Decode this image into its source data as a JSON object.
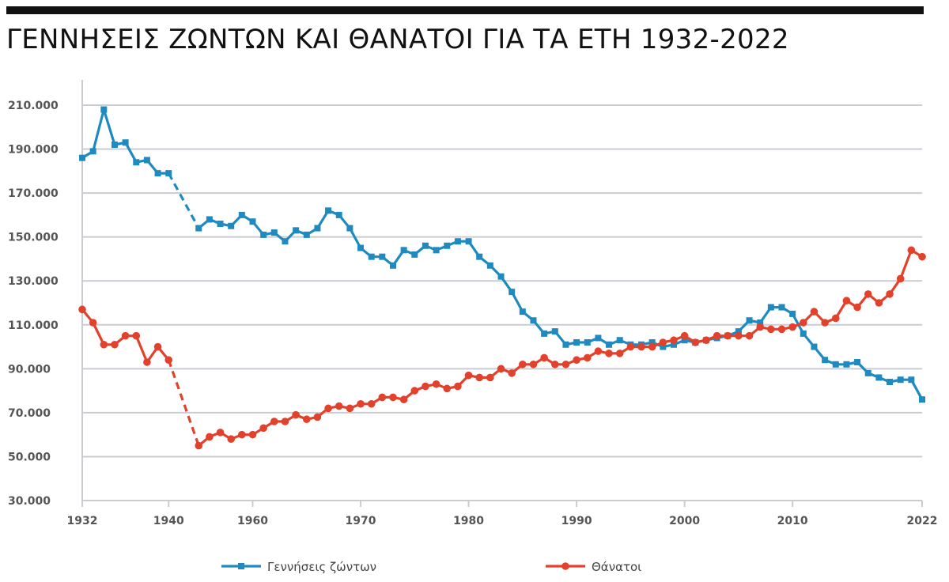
{
  "page": {
    "title": "ΓΕΝΝΗΣΕΙΣ ΖΩΝΤΩΝ ΚΑΙ ΘΑΝΑΤΟΙ ΓΙΑ ΤΑ ΕΤΗ 1932-2022"
  },
  "chart_data": {
    "type": "line",
    "title": "ΓΕΝΝΗΣΕΙΣ ΖΩΝΤΩΝ ΚΑΙ ΘΑΝΑΤΟΙ ΓΙΑ ΤΑ ΕΤΗ 1932-2022",
    "xlabel": "",
    "ylabel": "",
    "ylim": [
      30000,
      210000
    ],
    "y_ticks": [
      {
        "value": 210000,
        "label": "210.000"
      },
      {
        "value": 190000,
        "label": "190.000"
      },
      {
        "value": 170000,
        "label": "170.000"
      },
      {
        "value": 150000,
        "label": "150.000"
      },
      {
        "value": 130000,
        "label": "130.000"
      },
      {
        "value": 110000,
        "label": "110.000"
      },
      {
        "value": 90000,
        "label": "90.000"
      },
      {
        "value": 70000,
        "label": "70.000"
      },
      {
        "value": 50000,
        "label": "50.000"
      },
      {
        "value": 30000,
        "label": "30.000"
      }
    ],
    "x_ticks": [
      {
        "value": 1932,
        "label": "1932"
      },
      {
        "value": 1940,
        "label": "1940"
      },
      {
        "value": 1960,
        "label": "1960"
      },
      {
        "value": 1970,
        "label": "1970"
      },
      {
        "value": 1980,
        "label": "1980"
      },
      {
        "value": 1990,
        "label": "1990"
      },
      {
        "value": 2000,
        "label": "2000"
      },
      {
        "value": 2010,
        "label": "2010"
      },
      {
        "value": 2022,
        "label": "2022"
      }
    ],
    "x_segments": [
      {
        "from": 1932,
        "to": 1940,
        "mode": "annual"
      },
      {
        "from": 1940,
        "to": 1955,
        "mode": "gap"
      },
      {
        "from": 1955,
        "to": 2022,
        "mode": "annual"
      }
    ],
    "grid": "horizontal",
    "legend_position": "bottom",
    "series": [
      {
        "name": "Γεννήσεις ζώντων",
        "color": "#1f8ac0",
        "marker": "square",
        "points": [
          [
            1932,
            186000
          ],
          [
            1933,
            189000
          ],
          [
            1934,
            208000
          ],
          [
            1935,
            192000
          ],
          [
            1936,
            193000
          ],
          [
            1937,
            184000
          ],
          [
            1938,
            185000
          ],
          [
            1939,
            179000
          ],
          [
            1940,
            179000
          ],
          [
            1955,
            154000
          ],
          [
            1956,
            158000
          ],
          [
            1957,
            156000
          ],
          [
            1958,
            155000
          ],
          [
            1959,
            160000
          ],
          [
            1960,
            157000
          ],
          [
            1961,
            151000
          ],
          [
            1962,
            152000
          ],
          [
            1963,
            148000
          ],
          [
            1964,
            153000
          ],
          [
            1965,
            151000
          ],
          [
            1966,
            154000
          ],
          [
            1967,
            162000
          ],
          [
            1968,
            160000
          ],
          [
            1969,
            154000
          ],
          [
            1970,
            145000
          ],
          [
            1971,
            141000
          ],
          [
            1972,
            141000
          ],
          [
            1973,
            137000
          ],
          [
            1974,
            144000
          ],
          [
            1975,
            142000
          ],
          [
            1976,
            146000
          ],
          [
            1977,
            144000
          ],
          [
            1978,
            146000
          ],
          [
            1979,
            148000
          ],
          [
            1980,
            148000
          ],
          [
            1981,
            141000
          ],
          [
            1982,
            137000
          ],
          [
            1983,
            132000
          ],
          [
            1984,
            125000
          ],
          [
            1985,
            116000
          ],
          [
            1986,
            112000
          ],
          [
            1987,
            106000
          ],
          [
            1988,
            107000
          ],
          [
            1989,
            101000
          ],
          [
            1990,
            102000
          ],
          [
            1991,
            102000
          ],
          [
            1992,
            104000
          ],
          [
            1993,
            101000
          ],
          [
            1994,
            103000
          ],
          [
            1995,
            101000
          ],
          [
            1996,
            101000
          ],
          [
            1997,
            102000
          ],
          [
            1998,
            100000
          ],
          [
            1999,
            101000
          ],
          [
            2000,
            103000
          ],
          [
            2001,
            102000
          ],
          [
            2002,
            103000
          ],
          [
            2003,
            104000
          ],
          [
            2004,
            105000
          ],
          [
            2005,
            107000
          ],
          [
            2006,
            112000
          ],
          [
            2007,
            111000
          ],
          [
            2008,
            118000
          ],
          [
            2009,
            118000
          ],
          [
            2010,
            115000
          ],
          [
            2011,
            106000
          ],
          [
            2012,
            100000
          ],
          [
            2013,
            94000
          ],
          [
            2014,
            92000
          ],
          [
            2015,
            92000
          ],
          [
            2016,
            93000
          ],
          [
            2017,
            88000
          ],
          [
            2018,
            86000
          ],
          [
            2019,
            84000
          ],
          [
            2020,
            85000
          ],
          [
            2021,
            85000
          ],
          [
            2022,
            76000
          ]
        ],
        "break_after": 1940
      },
      {
        "name": "Θάνατοι",
        "color": "#e2412b",
        "marker": "circle",
        "points": [
          [
            1932,
            117000
          ],
          [
            1933,
            111000
          ],
          [
            1934,
            101000
          ],
          [
            1935,
            101000
          ],
          [
            1936,
            105000
          ],
          [
            1937,
            105000
          ],
          [
            1938,
            93000
          ],
          [
            1939,
            100000
          ],
          [
            1940,
            94000
          ],
          [
            1955,
            55000
          ],
          [
            1956,
            59000
          ],
          [
            1957,
            61000
          ],
          [
            1958,
            58000
          ],
          [
            1959,
            60000
          ],
          [
            1960,
            60000
          ],
          [
            1961,
            63000
          ],
          [
            1962,
            66000
          ],
          [
            1963,
            66000
          ],
          [
            1964,
            69000
          ],
          [
            1965,
            67000
          ],
          [
            1966,
            68000
          ],
          [
            1967,
            72000
          ],
          [
            1968,
            73000
          ],
          [
            1969,
            72000
          ],
          [
            1970,
            74000
          ],
          [
            1971,
            74000
          ],
          [
            1972,
            77000
          ],
          [
            1973,
            77000
          ],
          [
            1974,
            76000
          ],
          [
            1975,
            80000
          ],
          [
            1976,
            82000
          ],
          [
            1977,
            83000
          ],
          [
            1978,
            81000
          ],
          [
            1979,
            82000
          ],
          [
            1980,
            87000
          ],
          [
            1981,
            86000
          ],
          [
            1982,
            86000
          ],
          [
            1983,
            90000
          ],
          [
            1984,
            88000
          ],
          [
            1985,
            92000
          ],
          [
            1986,
            92000
          ],
          [
            1987,
            95000
          ],
          [
            1988,
            92000
          ],
          [
            1989,
            92000
          ],
          [
            1990,
            94000
          ],
          [
            1991,
            95000
          ],
          [
            1992,
            98000
          ],
          [
            1993,
            97000
          ],
          [
            1994,
            97000
          ],
          [
            1995,
            100000
          ],
          [
            1996,
            100000
          ],
          [
            1997,
            100000
          ],
          [
            1998,
            102000
          ],
          [
            1999,
            103000
          ],
          [
            2000,
            105000
          ],
          [
            2001,
            102000
          ],
          [
            2002,
            103000
          ],
          [
            2003,
            105000
          ],
          [
            2004,
            105000
          ],
          [
            2005,
            105000
          ],
          [
            2006,
            105000
          ],
          [
            2007,
            109000
          ],
          [
            2008,
            108000
          ],
          [
            2009,
            108000
          ],
          [
            2010,
            109000
          ],
          [
            2011,
            111000
          ],
          [
            2012,
            116000
          ],
          [
            2013,
            111000
          ],
          [
            2014,
            113000
          ],
          [
            2015,
            121000
          ],
          [
            2016,
            118000
          ],
          [
            2017,
            124000
          ],
          [
            2018,
            120000
          ],
          [
            2019,
            124000
          ],
          [
            2020,
            131000
          ],
          [
            2021,
            144000
          ],
          [
            2022,
            141000
          ]
        ],
        "break_after": 1940
      }
    ]
  }
}
